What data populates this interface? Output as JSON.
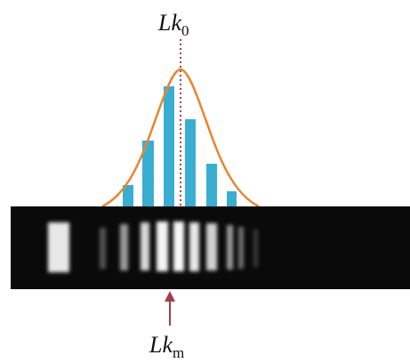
{
  "labels": [
    {
      "main": "Lk",
      "sub": "0"
    },
    {
      "main": "Lk",
      "sub": "m"
    }
  ]
}
